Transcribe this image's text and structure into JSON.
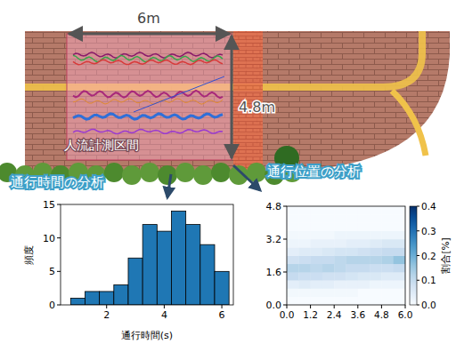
{
  "diagram": {
    "width_label": "6m",
    "height_label": "4.8m",
    "area_label": "人流計測区間",
    "left_caption": "通行時間の分析",
    "right_caption": "通行位置の分析"
  },
  "chart_data": [
    {
      "type": "histogram",
      "x_label": "通行時間(s)",
      "y_label": "頻度",
      "bins": [
        0.75,
        1.25,
        1.75,
        2.25,
        2.75,
        3.25,
        3.75,
        4.25,
        4.75,
        5.25,
        5.75,
        6.25
      ],
      "values": [
        1,
        2,
        2,
        3,
        7,
        12,
        11,
        14,
        12,
        9,
        5
      ],
      "color": "#1f77b4",
      "xlim": [
        0.4,
        6.4
      ],
      "xticks": [
        2,
        4,
        6
      ],
      "ylim": [
        0,
        15
      ],
      "yticks": [
        0,
        5,
        10,
        15
      ]
    },
    {
      "type": "heatmap",
      "cells": [
        [
          0,
          0,
          0,
          0,
          0,
          0,
          0,
          0,
          0,
          0
        ],
        [
          0.01,
          0.01,
          0.01,
          0.01,
          0.01,
          0.01,
          0,
          0,
          0,
          0
        ],
        [
          0.04,
          0.05,
          0.04,
          0.04,
          0.03,
          0.03,
          0.03,
          0.02,
          0.02,
          0.02
        ],
        [
          0.1,
          0.09,
          0.09,
          0.08,
          0.08,
          0.07,
          0.06,
          0.06,
          0.05,
          0.05
        ],
        [
          0.12,
          0.12,
          0.11,
          0.12,
          0.11,
          0.1,
          0.1,
          0.09,
          0.09,
          0.1
        ],
        [
          0.08,
          0.09,
          0.1,
          0.1,
          0.11,
          0.12,
          0.12,
          0.12,
          0.13,
          0.16
        ],
        [
          0.04,
          0.05,
          0.05,
          0.06,
          0.07,
          0.07,
          0.08,
          0.09,
          0.1,
          0.1
        ],
        [
          0.02,
          0.02,
          0.03,
          0.03,
          0.03,
          0.04,
          0.04,
          0.05,
          0.06,
          0.06
        ],
        [
          0.01,
          0.01,
          0.01,
          0.01,
          0.02,
          0.02,
          0.02,
          0.02,
          0.02,
          0.02
        ],
        [
          0,
          0,
          0,
          0,
          0,
          0,
          0,
          0,
          0,
          0
        ],
        [
          0,
          0,
          0,
          0,
          0,
          0,
          0,
          0,
          0,
          0
        ],
        [
          0,
          0,
          0,
          0,
          0,
          0,
          0,
          0,
          0,
          0
        ]
      ],
      "xlim": [
        0,
        6
      ],
      "xticks": [
        {
          "value": 0,
          "label": "0.0"
        },
        1.2,
        2.4,
        3.6,
        4.8,
        {
          "value": 6,
          "label": "6.0"
        }
      ],
      "ylim": [
        0,
        4.8
      ],
      "yticks": [
        {
          "value": 0,
          "label": "0.0"
        },
        1.6,
        3.2,
        4.8
      ],
      "color_range": [
        0,
        0.4
      ],
      "color_ticks": [
        {
          "value": 0,
          "label": "0.0"
        },
        0.1,
        0.2,
        0.3,
        0.4
      ],
      "colorbar_label": "割合[%]"
    }
  ]
}
